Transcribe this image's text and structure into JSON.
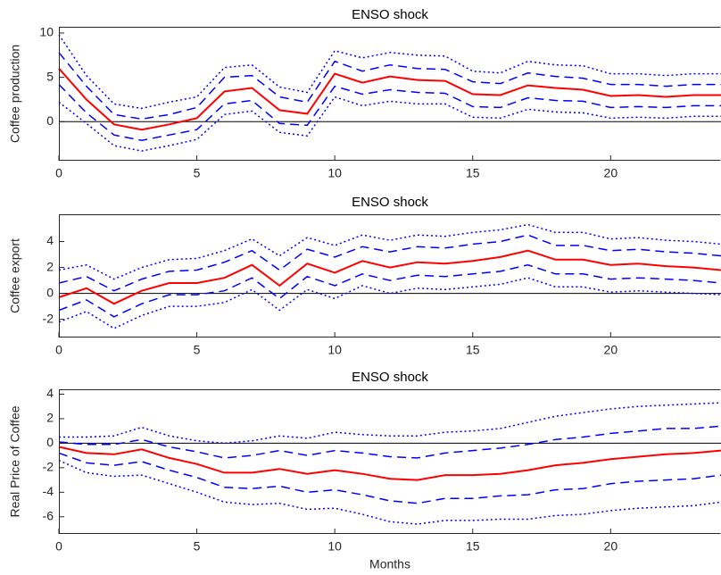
{
  "chart_data": [
    {
      "type": "line",
      "title": "ENSO shock",
      "ylabel": "Coffee production",
      "x": [
        0,
        1,
        2,
        3,
        4,
        5,
        6,
        7,
        8,
        9,
        10,
        11,
        12,
        13,
        14,
        15,
        16,
        17,
        18,
        19,
        20,
        21,
        22,
        23,
        24
      ],
      "xlim": [
        0,
        24
      ],
      "xticks": [
        0,
        5,
        10,
        15,
        20
      ],
      "ylim": [
        -4.4,
        10.7
      ],
      "yticks": [
        0,
        5,
        10
      ],
      "zero_line": true,
      "series": [
        {
          "color": "#0000ff",
          "style": "dotted",
          "values": [
            9.8,
            5.2,
            2.0,
            1.5,
            2.2,
            2.8,
            6.1,
            6.4,
            3.9,
            3.3,
            8.0,
            7.2,
            7.8,
            7.5,
            7.4,
            5.7,
            5.5,
            6.8,
            6.4,
            6.3,
            5.4,
            5.4,
            5.2,
            5.4,
            5.4
          ]
        },
        {
          "color": "#0000ff",
          "style": "dashed",
          "values": [
            7.8,
            4.0,
            0.8,
            0.3,
            0.8,
            1.6,
            5.0,
            5.2,
            2.8,
            2.2,
            6.8,
            5.7,
            6.4,
            6.0,
            5.9,
            4.5,
            4.3,
            5.5,
            5.1,
            4.9,
            4.2,
            4.2,
            4.0,
            4.2,
            4.2
          ]
        },
        {
          "color": "#ff0000",
          "style": "solid",
          "values": [
            6.0,
            2.5,
            -0.3,
            -0.9,
            -0.3,
            0.4,
            3.4,
            3.8,
            1.3,
            0.9,
            5.4,
            4.4,
            5.1,
            4.7,
            4.6,
            3.1,
            3.0,
            4.1,
            3.8,
            3.6,
            2.9,
            3.0,
            2.8,
            3.0,
            3.0
          ]
        },
        {
          "color": "#0000ff",
          "style": "dashed",
          "values": [
            4.2,
            1.0,
            -1.5,
            -2.1,
            -1.5,
            -0.9,
            2.0,
            2.4,
            -0.2,
            -0.4,
            4.0,
            3.1,
            3.6,
            3.3,
            3.2,
            1.7,
            1.6,
            2.7,
            2.4,
            2.3,
            1.6,
            1.7,
            1.6,
            1.8,
            1.8
          ]
        },
        {
          "color": "#0000ff",
          "style": "dotted",
          "values": [
            2.2,
            -0.2,
            -2.7,
            -3.3,
            -2.7,
            -2.0,
            0.8,
            1.2,
            -1.2,
            -1.6,
            2.8,
            1.8,
            2.3,
            2.0,
            2.0,
            0.5,
            0.4,
            1.4,
            1.1,
            1.0,
            0.4,
            0.5,
            0.4,
            0.6,
            0.6
          ]
        }
      ]
    },
    {
      "type": "line",
      "title": "ENSO shock",
      "ylabel": "Coffee export",
      "x": [
        0,
        1,
        2,
        3,
        4,
        5,
        6,
        7,
        8,
        9,
        10,
        11,
        12,
        13,
        14,
        15,
        16,
        17,
        18,
        19,
        20,
        21,
        22,
        23,
        24
      ],
      "xlim": [
        0,
        24
      ],
      "xticks": [
        0,
        5,
        10,
        15,
        20
      ],
      "ylim": [
        -3.4,
        6.1
      ],
      "yticks": [
        -2,
        0,
        2,
        4
      ],
      "zero_line": true,
      "series": [
        {
          "color": "#0000ff",
          "style": "dotted",
          "values": [
            1.8,
            2.2,
            1.1,
            2.0,
            2.6,
            2.7,
            3.3,
            4.2,
            2.9,
            4.3,
            3.7,
            4.5,
            4.1,
            4.5,
            4.4,
            4.7,
            4.9,
            5.3,
            4.7,
            4.7,
            4.2,
            4.3,
            4.1,
            4.0,
            3.8
          ]
        },
        {
          "color": "#0000ff",
          "style": "dashed",
          "values": [
            0.8,
            1.3,
            0.2,
            1.1,
            1.7,
            1.8,
            2.4,
            3.3,
            1.8,
            3.4,
            2.8,
            3.6,
            3.2,
            3.6,
            3.5,
            3.8,
            4.0,
            4.5,
            3.7,
            3.7,
            3.3,
            3.4,
            3.2,
            3.1,
            2.9
          ]
        },
        {
          "color": "#ff0000",
          "style": "solid",
          "values": [
            -0.3,
            0.4,
            -0.8,
            0.2,
            0.8,
            0.8,
            1.2,
            2.2,
            0.6,
            2.3,
            1.6,
            2.5,
            2.0,
            2.4,
            2.3,
            2.5,
            2.8,
            3.3,
            2.6,
            2.6,
            2.2,
            2.3,
            2.1,
            2.0,
            1.8
          ]
        },
        {
          "color": "#0000ff",
          "style": "dashed",
          "values": [
            -1.3,
            -0.5,
            -1.8,
            -0.8,
            -0.1,
            -0.1,
            0.2,
            1.2,
            -0.4,
            1.3,
            0.6,
            1.5,
            1.0,
            1.4,
            1.3,
            1.5,
            1.7,
            2.2,
            1.5,
            1.5,
            1.1,
            1.2,
            1.1,
            1.0,
            0.8
          ]
        },
        {
          "color": "#0000ff",
          "style": "dotted",
          "values": [
            -2.2,
            -1.4,
            -2.7,
            -1.7,
            -1.0,
            -1.0,
            -0.7,
            0.3,
            -1.3,
            0.3,
            -0.4,
            0.6,
            0.0,
            0.4,
            0.3,
            0.5,
            0.7,
            1.2,
            0.5,
            0.5,
            0.1,
            0.2,
            0.1,
            0.0,
            -0.1
          ]
        }
      ]
    },
    {
      "type": "line",
      "title": "ENSO shock",
      "ylabel": "Real Price of Coffee",
      "xlabel": "Months",
      "x": [
        0,
        1,
        2,
        3,
        4,
        5,
        6,
        7,
        8,
        9,
        10,
        11,
        12,
        13,
        14,
        15,
        16,
        17,
        18,
        19,
        20,
        21,
        22,
        23,
        24
      ],
      "xlim": [
        0,
        24
      ],
      "xticks": [
        0,
        5,
        10,
        15,
        20
      ],
      "ylim": [
        -7.4,
        4.4
      ],
      "yticks": [
        -6,
        -4,
        -2,
        0,
        2,
        4
      ],
      "zero_line": true,
      "series": [
        {
          "color": "#0000ff",
          "style": "dotted",
          "values": [
            0.5,
            0.5,
            0.6,
            1.3,
            0.6,
            0.2,
            0.0,
            0.2,
            0.6,
            0.4,
            0.9,
            0.7,
            0.6,
            0.6,
            0.9,
            1.0,
            1.2,
            1.7,
            2.2,
            2.5,
            2.8,
            3.0,
            3.1,
            3.2,
            3.3
          ]
        },
        {
          "color": "#0000ff",
          "style": "dashed",
          "values": [
            0.1,
            -0.1,
            -0.1,
            0.3,
            -0.3,
            -0.7,
            -1.2,
            -1.0,
            -0.6,
            -1.0,
            -0.6,
            -0.8,
            -1.1,
            -1.2,
            -0.8,
            -0.6,
            -0.4,
            -0.1,
            0.3,
            0.5,
            0.8,
            1.0,
            1.2,
            1.2,
            1.4
          ]
        },
        {
          "color": "#ff0000",
          "style": "solid",
          "values": [
            -0.3,
            -0.8,
            -0.9,
            -0.5,
            -1.2,
            -1.7,
            -2.4,
            -2.4,
            -2.1,
            -2.5,
            -2.2,
            -2.5,
            -2.9,
            -3.0,
            -2.6,
            -2.6,
            -2.5,
            -2.2,
            -1.8,
            -1.6,
            -1.3,
            -1.1,
            -0.9,
            -0.8,
            -0.6
          ]
        },
        {
          "color": "#0000ff",
          "style": "dashed",
          "values": [
            -0.8,
            -1.6,
            -1.8,
            -1.5,
            -2.2,
            -2.8,
            -3.6,
            -3.7,
            -3.5,
            -4.0,
            -3.8,
            -4.2,
            -4.7,
            -4.9,
            -4.5,
            -4.5,
            -4.3,
            -4.2,
            -3.8,
            -3.7,
            -3.3,
            -3.1,
            -3.0,
            -2.9,
            -2.6
          ]
        },
        {
          "color": "#0000ff",
          "style": "dotted",
          "values": [
            -1.4,
            -2.4,
            -2.7,
            -2.6,
            -3.3,
            -4.0,
            -4.8,
            -5.0,
            -4.9,
            -5.4,
            -5.3,
            -5.8,
            -6.4,
            -6.6,
            -6.3,
            -6.3,
            -6.2,
            -6.2,
            -5.9,
            -5.8,
            -5.5,
            -5.3,
            -5.2,
            -5.1,
            -4.8
          ]
        }
      ]
    }
  ]
}
